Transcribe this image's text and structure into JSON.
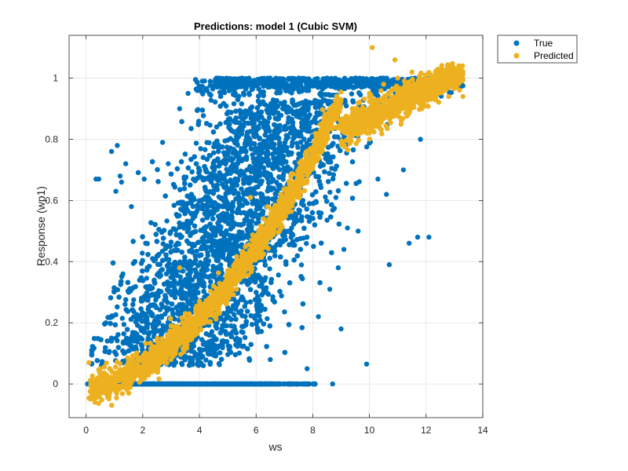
{
  "chart_data": {
    "type": "scatter",
    "title": "Predictions: model 1 (Cubic SVM)",
    "xlabel": "ws",
    "ylabel": "Response (wp1)",
    "xlim": [
      -0.6,
      14
    ],
    "ylim": [
      -0.11,
      1.14
    ],
    "xticks": [
      0,
      2,
      4,
      6,
      8,
      10,
      12,
      14
    ],
    "xtick_labels": [
      "0",
      "2",
      "4",
      "6",
      "8",
      "10",
      "12",
      "14"
    ],
    "yticks": [
      0,
      0.2,
      0.4,
      0.6,
      0.8,
      1
    ],
    "ytick_labels": [
      "0",
      "0.2",
      "0.4",
      "0.6",
      "0.8",
      "1"
    ],
    "grid": true,
    "legend_position": "outside-top-right",
    "series": [
      {
        "name": "True",
        "color": "#0072BD",
        "points": [
          [
            0.05,
            0.0
          ],
          [
            0.2,
            0.01
          ],
          [
            0.35,
            0.67
          ],
          [
            0.45,
            0.67
          ],
          [
            0.9,
            0.76
          ],
          [
            1.1,
            0.78
          ],
          [
            1.2,
            0.68
          ],
          [
            1.25,
            0.66
          ],
          [
            1.4,
            0.72
          ],
          [
            1.6,
            0.58
          ],
          [
            1.05,
            0.63
          ],
          [
            2.05,
            0.67
          ],
          [
            1.3,
            0.36
          ],
          [
            1.5,
            0.3
          ],
          [
            0.9,
            0.15
          ],
          [
            0.7,
            0.2
          ],
          [
            2.7,
            0.79
          ],
          [
            2.9,
            0.72
          ],
          [
            3.3,
            0.9
          ],
          [
            3.6,
            0.95
          ],
          [
            4.1,
            0.99
          ],
          [
            4.6,
            1.0
          ],
          [
            5.5,
            1.0
          ],
          [
            6.5,
            1.0
          ],
          [
            7.5,
            1.0
          ],
          [
            8.5,
            1.0
          ],
          [
            9.5,
            1.0
          ],
          [
            10.5,
            1.0
          ],
          [
            11.5,
            0.99
          ],
          [
            12.5,
            0.99
          ],
          [
            13.2,
            0.99
          ],
          [
            12.8,
            0.97
          ],
          [
            11.8,
            0.8
          ],
          [
            11.2,
            0.7
          ],
          [
            10.3,
            0.67
          ],
          [
            10.6,
            0.62
          ],
          [
            10.7,
            0.39
          ],
          [
            11.4,
            0.46
          ],
          [
            11.7,
            0.48
          ],
          [
            12.1,
            0.48
          ],
          [
            9.6,
            0.5
          ],
          [
            9.1,
            0.44
          ],
          [
            8.9,
            0.38
          ],
          [
            8.6,
            0.31
          ],
          [
            8.2,
            0.22
          ],
          [
            9.0,
            0.18
          ],
          [
            9.9,
            0.065
          ],
          [
            8.7,
            0.0
          ],
          [
            7.8,
            0.05
          ],
          [
            6.5,
            0.08
          ],
          [
            6.0,
            0.0
          ],
          [
            5.5,
            0.0
          ]
        ]
      },
      {
        "name": "Predicted",
        "color": "#EDB120",
        "points": [
          [
            0.1,
            0.07
          ],
          [
            0.3,
            -0.04
          ],
          [
            0.5,
            0.05
          ],
          [
            0.7,
            -0.02
          ],
          [
            1.0,
            0.0
          ],
          [
            1.5,
            0.05
          ],
          [
            2.0,
            0.09
          ],
          [
            2.5,
            0.14
          ],
          [
            3.0,
            0.19
          ],
          [
            3.5,
            0.23
          ],
          [
            4.0,
            0.27
          ],
          [
            4.5,
            0.32
          ],
          [
            5.0,
            0.37
          ],
          [
            5.5,
            0.43
          ],
          [
            6.0,
            0.48
          ],
          [
            6.5,
            0.54
          ],
          [
            7.0,
            0.61
          ],
          [
            7.5,
            0.67
          ],
          [
            8.0,
            0.74
          ],
          [
            8.5,
            0.8
          ],
          [
            9.0,
            0.85
          ],
          [
            9.5,
            0.9
          ],
          [
            10.0,
            0.95
          ],
          [
            10.5,
            0.98
          ],
          [
            11.0,
            1.0
          ],
          [
            11.5,
            1.02
          ],
          [
            12.0,
            0.97
          ],
          [
            12.8,
            0.94
          ],
          [
            13.3,
            0.94
          ],
          [
            10.1,
            1.1
          ],
          [
            10.9,
            1.06
          ],
          [
            11.6,
            0.93
          ],
          [
            5.8,
            0.61
          ],
          [
            6.4,
            0.58
          ],
          [
            3.3,
            0.38
          ]
        ]
      }
    ]
  }
}
